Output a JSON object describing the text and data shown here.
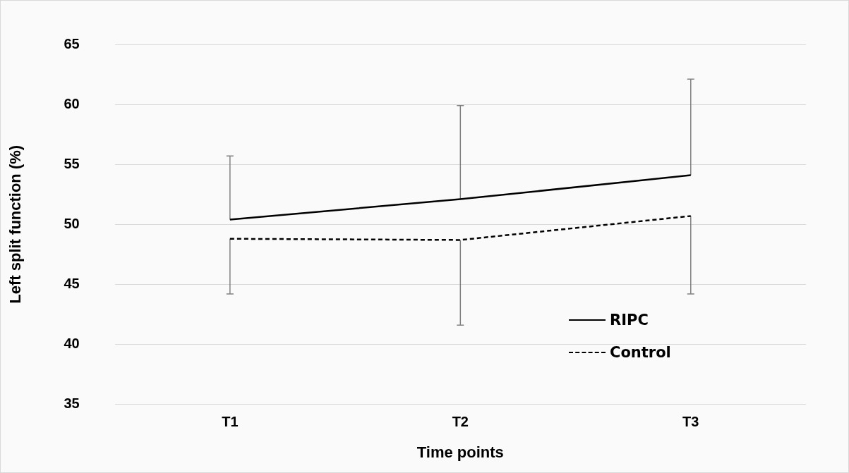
{
  "chart_data": {
    "type": "line",
    "xlabel": "Time points",
    "ylabel": "Left split function (%)",
    "categories": [
      "T1",
      "T2",
      "T3"
    ],
    "series": [
      {
        "name": "RIPC",
        "color": "#000000",
        "line_style": "solid",
        "values": [
          50.4,
          52.1,
          54.1
        ],
        "errors": [
          [
            50.4,
            55.7
          ],
          [
            52.1,
            59.9
          ],
          [
            54.1,
            62.1
          ]
        ]
      },
      {
        "name": "Control",
        "color": "#000000",
        "line_style": "dashed",
        "values": [
          48.8,
          48.7,
          50.7
        ],
        "errors": [
          [
            44.2,
            48.8
          ],
          [
            41.6,
            48.7
          ],
          [
            44.2,
            50.7
          ]
        ]
      }
    ],
    "ylim": [
      35,
      65
    ],
    "yticks": [
      35,
      40,
      45,
      50,
      55,
      60,
      65
    ],
    "grid": "y",
    "legend": "bottom right",
    "marker": "none"
  }
}
